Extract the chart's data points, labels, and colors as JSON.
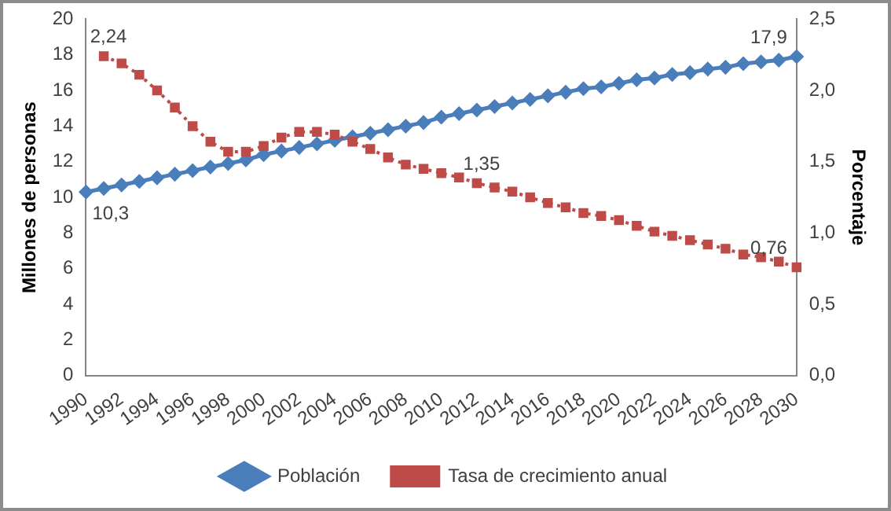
{
  "chart_data": {
    "type": "line",
    "xlabel": null,
    "ylabel": "Millones de personas",
    "y2label": "Porcentaje",
    "categories": [
      "1990",
      null,
      "1992",
      null,
      "1994",
      null,
      "1996",
      null,
      "1998",
      null,
      "2000",
      null,
      "2002",
      null,
      "2004",
      null,
      "2006",
      null,
      "2008",
      null,
      "2010",
      null,
      "2012",
      null,
      "2014",
      null,
      "2016",
      null,
      "2018",
      null,
      "2020",
      null,
      "2022",
      null,
      "2024",
      null,
      "2026",
      null,
      "2028",
      null,
      "2030"
    ],
    "series": [
      {
        "name": "Población",
        "color": "#4a7ebb",
        "marker": "diamond",
        "line_style": "solid",
        "values": [
          10.3,
          10.5,
          10.7,
          10.9,
          11.1,
          11.3,
          11.5,
          11.7,
          11.9,
          12.1,
          12.4,
          12.6,
          12.8,
          13.0,
          13.2,
          13.4,
          13.6,
          13.8,
          14.0,
          14.2,
          14.5,
          14.7,
          14.9,
          15.1,
          15.3,
          15.5,
          15.7,
          15.9,
          16.1,
          16.2,
          16.4,
          16.6,
          16.7,
          16.9,
          17.0,
          17.2,
          17.3,
          17.5,
          17.6,
          17.7,
          17.9
        ],
        "value_labels": [
          "10,3",
          null,
          null,
          null,
          null,
          null,
          null,
          null,
          null,
          null,
          null,
          null,
          null,
          null,
          null,
          null,
          null,
          null,
          null,
          null,
          null,
          null,
          null,
          null,
          null,
          null,
          null,
          null,
          null,
          null,
          null,
          null,
          null,
          null,
          null,
          null,
          null,
          null,
          null,
          null,
          "17,9"
        ]
      },
      {
        "name": "Tasa de crecimiento anual",
        "color": "#be4b48",
        "marker": "square",
        "line_style": "dotted",
        "axis": "y2",
        "values": [
          null,
          2.24,
          2.19,
          2.11,
          2.0,
          1.88,
          1.75,
          1.64,
          1.57,
          1.57,
          1.61,
          1.67,
          1.71,
          1.71,
          1.69,
          1.64,
          1.59,
          1.53,
          1.48,
          1.45,
          1.42,
          1.39,
          1.35,
          1.32,
          1.29,
          1.25,
          1.21,
          1.18,
          1.14,
          1.12,
          1.09,
          1.05,
          1.01,
          0.98,
          0.95,
          0.92,
          0.89,
          0.85,
          0.83,
          0.8,
          0.76
        ],
        "value_labels": [
          null,
          "2,24",
          null,
          null,
          null,
          null,
          null,
          null,
          null,
          null,
          null,
          null,
          null,
          null,
          null,
          null,
          null,
          null,
          null,
          null,
          null,
          null,
          "1,35",
          null,
          null,
          null,
          null,
          null,
          null,
          null,
          null,
          null,
          null,
          null,
          null,
          null,
          null,
          null,
          null,
          null,
          "0,76"
        ]
      }
    ],
    "ylim": [
      0,
      20
    ],
    "yticks": [
      0,
      2,
      4,
      6,
      8,
      10,
      12,
      14,
      16,
      18,
      20
    ],
    "y2lim": [
      0,
      2.5
    ],
    "y2ticks": [
      {
        "value": 0,
        "label": "0,0"
      },
      {
        "value": 0.5,
        "label": "0,5"
      },
      {
        "value": 1,
        "label": "1,0"
      },
      {
        "value": 1.5,
        "label": "1,5"
      },
      {
        "value": 2,
        "label": "2,0"
      },
      {
        "value": 2.5,
        "label": "2,5"
      }
    ],
    "grid": false,
    "legend": "bottom"
  }
}
